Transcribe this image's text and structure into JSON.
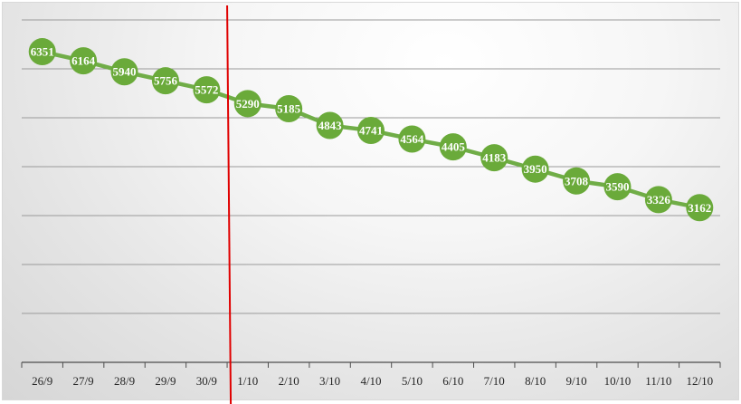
{
  "chart_data": {
    "type": "line",
    "title": "",
    "xlabel": "",
    "ylabel": "",
    "categories": [
      "26/9",
      "27/9",
      "28/9",
      "29/9",
      "30/9",
      "1/10",
      "2/10",
      "3/10",
      "4/10",
      "5/10",
      "6/10",
      "7/10",
      "8/10",
      "9/10",
      "10/10",
      "11/10",
      "12/10"
    ],
    "series": [
      {
        "values": [
          6351,
          6164,
          5940,
          5756,
          5572,
          5290,
          5185,
          4843,
          4741,
          4564,
          4405,
          4183,
          3950,
          3708,
          3590,
          3326,
          3162
        ]
      }
    ],
    "ylim": [
      0,
      7000
    ],
    "y_gridlines": [
      1000,
      2000,
      3000,
      4000,
      5000,
      6000,
      7000
    ],
    "y_tick_labels_visible": false,
    "data_labels": true,
    "grid": true,
    "legend": "none",
    "reference_line": {
      "category": "1/10",
      "orientation": "vertical"
    },
    "colors": {
      "series": "#70ad47",
      "marker": "#6aaa3a",
      "reference_line": "#e00000",
      "data_label": "#ffffff"
    }
  }
}
